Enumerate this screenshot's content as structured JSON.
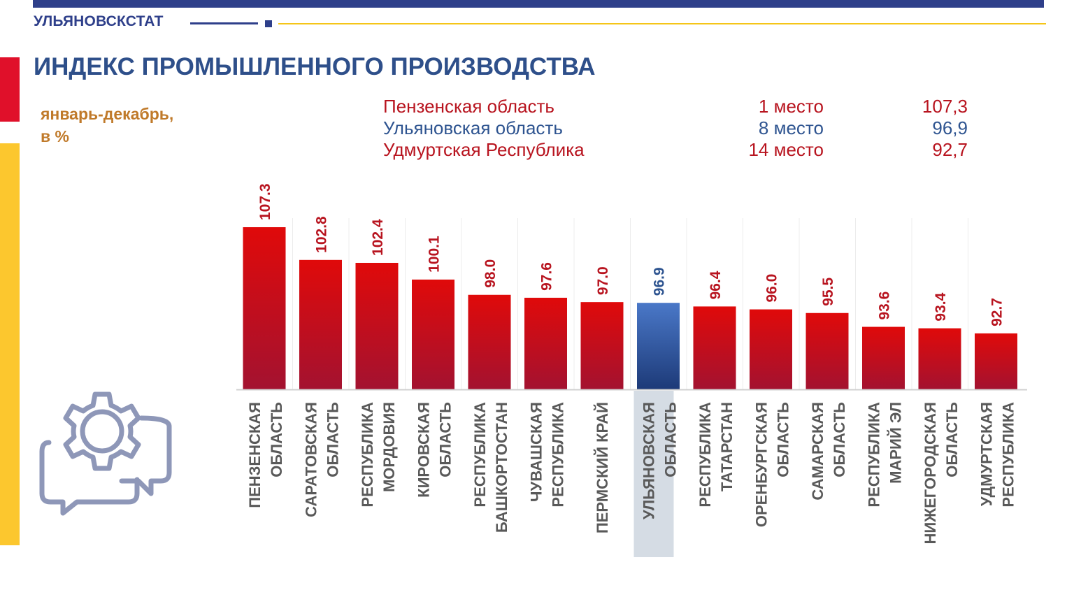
{
  "header": {
    "brand": "УЛЬЯНОВСКСТАТ",
    "title": "ИНДЕКС ПРОМЫШЛЕННОГО ПРОИЗВОДСТВА",
    "subtitle_line1": "январь-декабрь,",
    "subtitle_line2": "в %"
  },
  "ranking": [
    {
      "name": "Пензенская область",
      "place": "1 место",
      "value": "107,3",
      "color": "#b8141f"
    },
    {
      "name": "Ульяновская область",
      "place": "8 место",
      "value": "96,9",
      "color": "#2e5490"
    },
    {
      "name": "Удмуртская Республика",
      "place": "14 место",
      "value": "92,7",
      "color": "#b8141f"
    }
  ],
  "colors": {
    "bar_red_top": "#e00a0a",
    "bar_red_bottom": "#a31230",
    "bar_blue_top": "#4a78c8",
    "bar_blue_bottom": "#1d3a78",
    "label_red": "#b8141f",
    "label_blue": "#2e5490",
    "category_text": "#595959",
    "highlight_bg": "#d5dce4"
  },
  "icons": {
    "decor": "gear-chat-icon"
  },
  "chart_data": {
    "type": "bar",
    "title": "ИНДЕКС ПРОМЫШЛЕННОГО ПРОИЗВОДСТВА",
    "xlabel": "",
    "ylabel": "январь-декабрь, в %",
    "ylim": [
      85,
      110
    ],
    "grid": false,
    "legend": "none",
    "highlight_index": 7,
    "categories": [
      [
        "ПЕНЗЕНСКАЯ",
        "ОБЛАСТЬ"
      ],
      [
        "САРАТОВСКАЯ",
        "ОБЛАСТЬ"
      ],
      [
        "РЕСПУБЛИКА",
        "МОРДОВИЯ"
      ],
      [
        "КИРОВСКАЯ",
        "ОБЛАСТЬ"
      ],
      [
        "РЕСПУБЛИКА",
        "БАШКОРТОСТАН"
      ],
      [
        "ЧУВАШСКАЯ",
        "РЕСПУБЛИКА"
      ],
      [
        "ПЕРМСКИЙ КРАЙ"
      ],
      [
        "УЛЬЯНОВСКАЯ",
        "ОБЛАСТЬ"
      ],
      [
        "РЕСПУБЛИКА",
        "ТАТАРСТАН"
      ],
      [
        "ОРЕНБУРГСКАЯ",
        "ОБЛАСТЬ"
      ],
      [
        "САМАРСКАЯ",
        "ОБЛАСТЬ"
      ],
      [
        "РЕСПУБЛИКА",
        "МАРИЙ ЭЛ"
      ],
      [
        "НИЖЕГОРОДСКАЯ",
        "ОБЛАСТЬ"
      ],
      [
        "УДМУРТСКАЯ",
        "РЕСПУБЛИКА"
      ]
    ],
    "values": [
      107.3,
      102.8,
      102.4,
      100.1,
      98.0,
      97.6,
      97.0,
      96.9,
      96.4,
      96.0,
      95.5,
      93.6,
      93.4,
      92.7
    ],
    "value_labels": [
      "107.3",
      "102.8",
      "102.4",
      "100.1",
      "98.0",
      "97.6",
      "97.0",
      "96.9",
      "96.4",
      "96.0",
      "95.5",
      "93.6",
      "93.4",
      "92.7"
    ]
  }
}
